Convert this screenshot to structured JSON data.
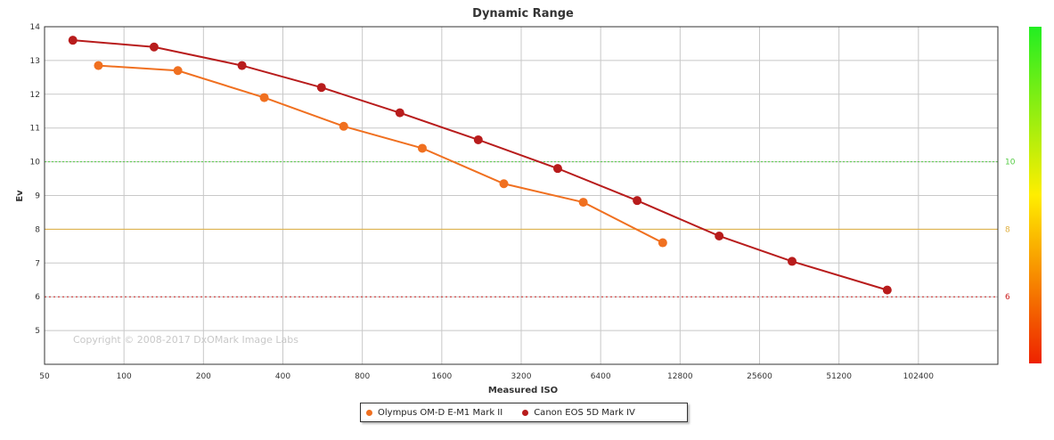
{
  "chart_data": {
    "type": "line",
    "title": "Dynamic Range",
    "xlabel": "Measured ISO",
    "ylabel": "Ev",
    "x_scale": "log2",
    "x_ticks": [
      50,
      100,
      200,
      400,
      800,
      1600,
      3200,
      6400,
      12800,
      25600,
      51200,
      102400
    ],
    "x_tick_labels": [
      "50",
      "100",
      "200",
      "400",
      "800",
      "1600",
      "3200",
      "6400",
      "12800",
      "25600",
      "51200",
      "102400"
    ],
    "xlim": [
      50,
      204800
    ],
    "ylim": [
      4,
      14
    ],
    "y_ticks": [
      5,
      6,
      7,
      8,
      9,
      10,
      11,
      12,
      13,
      14
    ],
    "grid": true,
    "legend_position": "bottom-center",
    "watermark": "Copyright © 2008-2017 DxOMark Image Labs",
    "reference_lines": [
      {
        "y": 10,
        "label": "10",
        "color": "#55cc44",
        "style": "dashed"
      },
      {
        "y": 8,
        "label": "8",
        "color": "#e0b040",
        "style": "solid"
      },
      {
        "y": 6,
        "label": "6",
        "color": "#cc2222",
        "style": "dotted"
      }
    ],
    "color_scale": {
      "top": "#22ee22",
      "middle": "#ffee00",
      "bottom": "#ee2200"
    },
    "series": [
      {
        "name": "Olympus OM-D E-M1 Mark II",
        "color": "#f07020",
        "x": [
          80,
          160,
          340,
          680,
          1350,
          2750,
          5500,
          11000
        ],
        "y": [
          12.85,
          12.7,
          11.9,
          11.05,
          10.4,
          9.35,
          8.8,
          7.6
        ]
      },
      {
        "name": "Canon EOS 5D Mark IV",
        "color": "#b81c1c",
        "x": [
          64,
          130,
          280,
          560,
          1110,
          2200,
          4400,
          8800,
          18000,
          34000,
          78000
        ],
        "y": [
          13.6,
          13.4,
          12.85,
          12.2,
          11.45,
          10.65,
          9.8,
          8.85,
          7.8,
          7.05,
          6.2
        ]
      }
    ]
  }
}
